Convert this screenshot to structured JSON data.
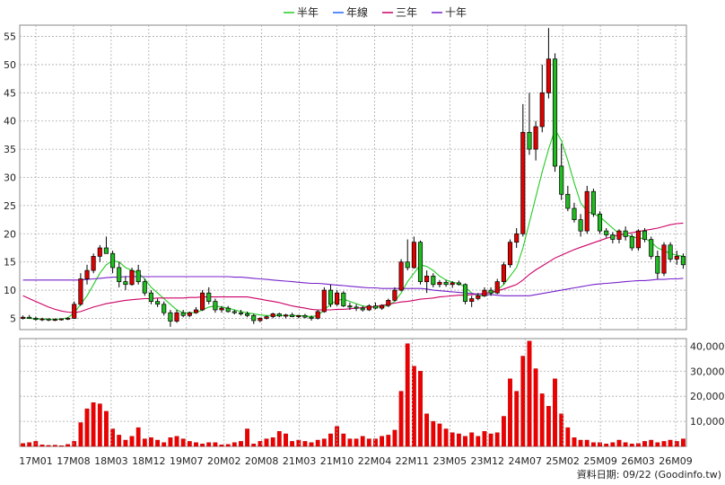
{
  "chart_data": {
    "type": "candlestick-volume",
    "legend": [
      {
        "name": "半年",
        "color": "#22cc22"
      },
      {
        "name": "年線",
        "color": "#2266ff"
      },
      {
        "name": "三年",
        "color": "#cc0066"
      },
      {
        "name": "十年",
        "color": "#7722cc"
      }
    ],
    "x_tick_labels": [
      "17M01",
      "17M08",
      "18M03",
      "18M12",
      "19M07",
      "20M02",
      "20M08",
      "21M03",
      "21M10",
      "22M04",
      "22M11",
      "23M05",
      "23M12",
      "24M07",
      "25M02",
      "25M09",
      "26M03",
      "26M09"
    ],
    "price_axis": {
      "ticks": [
        5,
        10,
        15,
        20,
        25,
        30,
        35,
        40,
        45,
        50,
        55
      ],
      "range": [
        3,
        57
      ]
    },
    "volume_axis": {
      "ticks": [
        10000,
        20000,
        30000,
        40000
      ],
      "tick_labels": [
        "10,000",
        "20,000",
        "30,000",
        "40,000"
      ],
      "range": [
        0,
        43000
      ]
    },
    "source_note": "資料日期: 09/22  (Goodinfo.tw)",
    "candles": [
      [
        5.0,
        5.5,
        4.8,
        5.2
      ],
      [
        5.2,
        5.6,
        4.9,
        5.0
      ],
      [
        5.0,
        5.3,
        4.6,
        4.8
      ],
      [
        4.8,
        5.1,
        4.5,
        4.9
      ],
      [
        4.9,
        5.0,
        4.5,
        4.7
      ],
      [
        4.7,
        5.0,
        4.5,
        4.8
      ],
      [
        4.8,
        5.0,
        4.6,
        4.9
      ],
      [
        4.9,
        5.2,
        4.7,
        5.0
      ],
      [
        5.0,
        8.0,
        4.9,
        7.5
      ],
      [
        7.5,
        13.0,
        7.2,
        12.0
      ],
      [
        12.0,
        14.5,
        11.0,
        13.5
      ],
      [
        13.5,
        16.5,
        13.0,
        16.0
      ],
      [
        16.0,
        18.0,
        15.0,
        17.5
      ],
      [
        17.5,
        19.5,
        16.5,
        16.5
      ],
      [
        16.5,
        17.0,
        13.0,
        14.0
      ],
      [
        14.0,
        15.0,
        10.5,
        11.5
      ],
      [
        11.5,
        12.5,
        10.0,
        11.0
      ],
      [
        11.0,
        14.0,
        10.8,
        13.5
      ],
      [
        13.5,
        14.5,
        11.0,
        11.5
      ],
      [
        11.5,
        12.0,
        9.0,
        9.5
      ],
      [
        9.5,
        10.0,
        7.5,
        8.0
      ],
      [
        8.0,
        8.5,
        7.0,
        7.5
      ],
      [
        7.5,
        8.0,
        5.5,
        6.0
      ],
      [
        6.0,
        6.5,
        3.5,
        4.5
      ],
      [
        4.5,
        6.5,
        4.2,
        6.0
      ],
      [
        6.0,
        6.5,
        5.2,
        5.5
      ],
      [
        5.5,
        6.2,
        5.2,
        6.0
      ],
      [
        6.0,
        7.0,
        5.8,
        6.5
      ],
      [
        6.5,
        10.0,
        6.3,
        9.5
      ],
      [
        9.5,
        10.5,
        7.5,
        8.0
      ],
      [
        8.0,
        8.5,
        6.0,
        6.5
      ],
      [
        6.5,
        7.2,
        6.0,
        6.8
      ],
      [
        6.8,
        7.2,
        6.0,
        6.2
      ],
      [
        6.2,
        6.5,
        5.7,
        6.0
      ],
      [
        6.0,
        6.5,
        5.5,
        5.8
      ],
      [
        5.8,
        6.2,
        5.2,
        5.5
      ],
      [
        5.5,
        5.8,
        4.0,
        4.6
      ],
      [
        4.6,
        5.2,
        4.3,
        5.0
      ],
      [
        5.0,
        5.5,
        4.8,
        5.3
      ],
      [
        5.3,
        6.0,
        5.0,
        5.8
      ],
      [
        5.8,
        6.0,
        5.2,
        5.4
      ],
      [
        5.4,
        5.8,
        5.0,
        5.6
      ],
      [
        5.6,
        6.0,
        5.2,
        5.3
      ],
      [
        5.3,
        5.6,
        5.0,
        5.5
      ],
      [
        5.5,
        5.8,
        5.0,
        5.2
      ],
      [
        5.2,
        5.5,
        4.6,
        5.0
      ],
      [
        5.0,
        6.5,
        4.8,
        6.2
      ],
      [
        6.2,
        10.5,
        6.0,
        10.0
      ],
      [
        10.0,
        11.0,
        7.0,
        7.5
      ],
      [
        7.5,
        10.0,
        7.2,
        9.5
      ],
      [
        9.5,
        9.8,
        7.0,
        7.2
      ],
      [
        7.2,
        7.8,
        6.5,
        7.0
      ],
      [
        7.0,
        7.5,
        6.3,
        6.8
      ],
      [
        6.8,
        7.2,
        6.2,
        6.5
      ],
      [
        6.5,
        7.5,
        6.3,
        7.2
      ],
      [
        7.2,
        7.8,
        6.6,
        6.8
      ],
      [
        6.8,
        7.5,
        6.5,
        7.3
      ],
      [
        7.3,
        8.5,
        7.0,
        8.2
      ],
      [
        8.2,
        10.5,
        8.0,
        10.0
      ],
      [
        10.0,
        15.5,
        9.8,
        15.0
      ],
      [
        15.0,
        19.0,
        13.5,
        14.0
      ],
      [
        14.0,
        19.5,
        13.8,
        18.5
      ],
      [
        18.5,
        18.8,
        11.0,
        11.5
      ],
      [
        11.5,
        13.5,
        9.5,
        12.5
      ],
      [
        12.5,
        13.0,
        10.5,
        11.0
      ],
      [
        11.0,
        11.8,
        10.5,
        11.4
      ],
      [
        11.4,
        11.8,
        10.6,
        11.0
      ],
      [
        11.0,
        11.6,
        10.4,
        11.3
      ],
      [
        11.3,
        11.7,
        10.8,
        11.0
      ],
      [
        11.0,
        11.2,
        7.5,
        8.0
      ],
      [
        8.0,
        9.0,
        7.0,
        8.5
      ],
      [
        8.5,
        9.5,
        8.2,
        9.0
      ],
      [
        9.0,
        10.5,
        8.8,
        10.0
      ],
      [
        10.0,
        10.5,
        9.0,
        9.5
      ],
      [
        9.5,
        12.0,
        9.3,
        11.5
      ],
      [
        11.5,
        15.0,
        11.0,
        14.5
      ],
      [
        14.5,
        19.0,
        14.0,
        18.5
      ],
      [
        18.5,
        21.0,
        17.5,
        20.0
      ],
      [
        20.0,
        43.0,
        19.5,
        38.0
      ],
      [
        38.0,
        45.0,
        34.0,
        35.0
      ],
      [
        35.0,
        40.0,
        33.0,
        39.0
      ],
      [
        39.0,
        50.0,
        38.0,
        45.0
      ],
      [
        45.0,
        56.5,
        44.0,
        51.0
      ],
      [
        51.0,
        52.0,
        31.0,
        32.0
      ],
      [
        32.0,
        36.0,
        26.0,
        27.0
      ],
      [
        27.0,
        28.5,
        24.0,
        24.5
      ],
      [
        24.5,
        25.5,
        22.0,
        22.5
      ],
      [
        22.5,
        23.5,
        19.5,
        20.5
      ],
      [
        20.5,
        28.5,
        20.0,
        27.5
      ],
      [
        27.5,
        28.0,
        23.0,
        23.5
      ],
      [
        23.5,
        24.0,
        20.0,
        20.5
      ],
      [
        20.5,
        21.0,
        19.3,
        19.8
      ],
      [
        19.8,
        20.3,
        18.3,
        19.0
      ],
      [
        19.0,
        20.8,
        18.3,
        20.5
      ],
      [
        20.5,
        21.3,
        18.8,
        19.5
      ],
      [
        19.5,
        20.0,
        17.0,
        17.5
      ],
      [
        17.5,
        20.8,
        17.0,
        20.5
      ],
      [
        20.5,
        21.0,
        18.5,
        19.0
      ],
      [
        19.0,
        19.5,
        15.5,
        16.0
      ],
      [
        16.0,
        17.0,
        12.0,
        13.0
      ],
      [
        13.0,
        18.5,
        12.5,
        18.0
      ],
      [
        18.0,
        18.5,
        15.0,
        15.5
      ],
      [
        15.5,
        17.0,
        14.5,
        16.0
      ],
      [
        16.0,
        16.5,
        13.8,
        14.5
      ]
    ],
    "ma_half_year": [
      5.1,
      5.0,
      4.9,
      4.9,
      4.8,
      4.8,
      4.9,
      5.1,
      6.0,
      7.5,
      9.0,
      11.0,
      13.0,
      14.5,
      15.2,
      15.0,
      14.0,
      13.5,
      13.0,
      12.0,
      10.5,
      9.5,
      8.5,
      7.5,
      6.5,
      6.0,
      6.0,
      6.0,
      6.5,
      7.0,
      7.2,
      7.0,
      6.8,
      6.5,
      6.2,
      6.0,
      5.8,
      5.6,
      5.5,
      5.5,
      5.5,
      5.5,
      5.5,
      5.5,
      5.4,
      5.3,
      5.5,
      6.5,
      7.5,
      8.2,
      8.4,
      8.0,
      7.6,
      7.2,
      7.0,
      7.0,
      7.0,
      7.3,
      8.0,
      9.5,
      11.5,
      13.0,
      14.5,
      14.2,
      13.5,
      12.5,
      11.8,
      11.4,
      11.2,
      10.5,
      9.5,
      9.0,
      9.0,
      9.3,
      10.0,
      11.0,
      12.5,
      14.0,
      17.5,
      22.0,
      26.5,
      31.0,
      35.0,
      38.5,
      36.5,
      33.0,
      29.0,
      25.5,
      24.0,
      23.5,
      23.0,
      22.0,
      21.0,
      20.0,
      19.8,
      19.5,
      19.2,
      19.2,
      18.5,
      17.5,
      17.0,
      16.5,
      16.2,
      16.0
    ],
    "ma_year": [
      null,
      null,
      null,
      null,
      null,
      null,
      null,
      null,
      null,
      null,
      null,
      null,
      null,
      null,
      null,
      null,
      null,
      null,
      null,
      null,
      null,
      null,
      null,
      null,
      null,
      null,
      null,
      null,
      null,
      null,
      null,
      null,
      null,
      null,
      null,
      null,
      null,
      null,
      null,
      null,
      null,
      null,
      null,
      null,
      null,
      null,
      null,
      null,
      null,
      null,
      null,
      null,
      null,
      null,
      null,
      null,
      null,
      null,
      null,
      null,
      null,
      null,
      null,
      null,
      null,
      null,
      null,
      null,
      null,
      null,
      null,
      null,
      null,
      null,
      null,
      null,
      null,
      null,
      null,
      null,
      null,
      null,
      null,
      null,
      null,
      null,
      null,
      null,
      null,
      null,
      null,
      null,
      null,
      null,
      null,
      null,
      null,
      null,
      null,
      null,
      null,
      null,
      null,
      null
    ],
    "ma_three_year": [
      9.0,
      8.5,
      8.0,
      7.5,
      7.0,
      6.6,
      6.3,
      6.1,
      6.0,
      6.2,
      6.6,
      7.0,
      7.3,
      7.6,
      7.8,
      8.0,
      8.2,
      8.3,
      8.4,
      8.5,
      8.5,
      8.6,
      8.6,
      8.6,
      8.6,
      8.6,
      8.7,
      8.7,
      8.8,
      8.8,
      8.8,
      8.8,
      8.8,
      8.8,
      8.8,
      8.8,
      8.6,
      8.4,
      8.2,
      8.0,
      7.8,
      7.5,
      7.2,
      7.0,
      6.8,
      6.6,
      6.5,
      6.5,
      6.5,
      6.6,
      6.6,
      6.7,
      6.8,
      6.9,
      7.0,
      7.1,
      7.3,
      7.5,
      7.7,
      7.9,
      8.0,
      8.2,
      8.4,
      8.5,
      8.6,
      8.8,
      8.9,
      9.0,
      9.1,
      9.1,
      9.2,
      9.3,
      9.4,
      9.6,
      9.9,
      10.2,
      10.6,
      11.0,
      11.8,
      12.8,
      13.6,
      14.3,
      15.0,
      15.7,
      16.2,
      16.7,
      17.2,
      17.6,
      18.0,
      18.4,
      18.8,
      19.2,
      19.5,
      19.8,
      20.0,
      20.2,
      20.4,
      20.6,
      20.8,
      21.0,
      21.3,
      21.6,
      21.8,
      21.9
    ],
    "ma_ten_year": [
      11.8,
      11.8,
      11.8,
      11.8,
      11.8,
      11.8,
      11.8,
      11.8,
      11.8,
      11.8,
      11.9,
      12.0,
      12.1,
      12.2,
      12.3,
      12.3,
      12.4,
      12.4,
      12.4,
      12.4,
      12.4,
      12.4,
      12.4,
      12.4,
      12.4,
      12.4,
      12.4,
      12.4,
      12.4,
      12.4,
      12.4,
      12.4,
      12.4,
      12.3,
      12.3,
      12.2,
      12.1,
      12.0,
      11.9,
      11.8,
      11.7,
      11.6,
      11.5,
      11.4,
      11.3,
      11.2,
      11.2,
      11.1,
      11.0,
      10.9,
      10.8,
      10.7,
      10.6,
      10.5,
      10.4,
      10.4,
      10.3,
      10.3,
      10.3,
      10.3,
      10.3,
      10.3,
      10.3,
      10.2,
      10.0,
      9.9,
      9.8,
      9.7,
      9.6,
      9.5,
      9.4,
      9.3,
      9.2,
      9.2,
      9.1,
      9.0,
      9.0,
      9.0,
      9.0,
      9.0,
      9.2,
      9.4,
      9.6,
      9.8,
      10.0,
      10.2,
      10.4,
      10.6,
      10.8,
      11.0,
      11.1,
      11.2,
      11.3,
      11.4,
      11.5,
      11.6,
      11.7,
      11.7,
      11.8,
      11.9,
      11.9,
      12.0,
      12.0,
      12.1
    ],
    "volumes": [
      1200,
      1500,
      2000,
      600,
      400,
      500,
      300,
      800,
      2000,
      9500,
      15000,
      17500,
      17000,
      14000,
      7000,
      4500,
      2500,
      4000,
      7500,
      3000,
      3500,
      2500,
      1500,
      3500,
      4000,
      3000,
      2000,
      1500,
      1000,
      1500,
      1500,
      600,
      800,
      1500,
      2000,
      7000,
      1000,
      2000,
      3000,
      3500,
      6000,
      5000,
      2000,
      2500,
      2000,
      1500,
      2500,
      3000,
      5000,
      8000,
      5000,
      3000,
      3000,
      4000,
      3000,
      3000,
      4000,
      4500,
      6500,
      22000,
      41000,
      32000,
      30000,
      13000,
      10000,
      9000,
      7000,
      5500,
      5000,
      4000,
      5500,
      4000,
      6000,
      5000,
      5500,
      12000,
      27000,
      22000,
      36000,
      42000,
      31000,
      21000,
      16000,
      27000,
      13000,
      7500,
      3500,
      2500,
      2500,
      1500,
      1500,
      1000,
      1500,
      2500,
      1500,
      1000,
      1200,
      2000,
      2500,
      1500,
      2000,
      2500,
      2000,
      3000
    ]
  }
}
